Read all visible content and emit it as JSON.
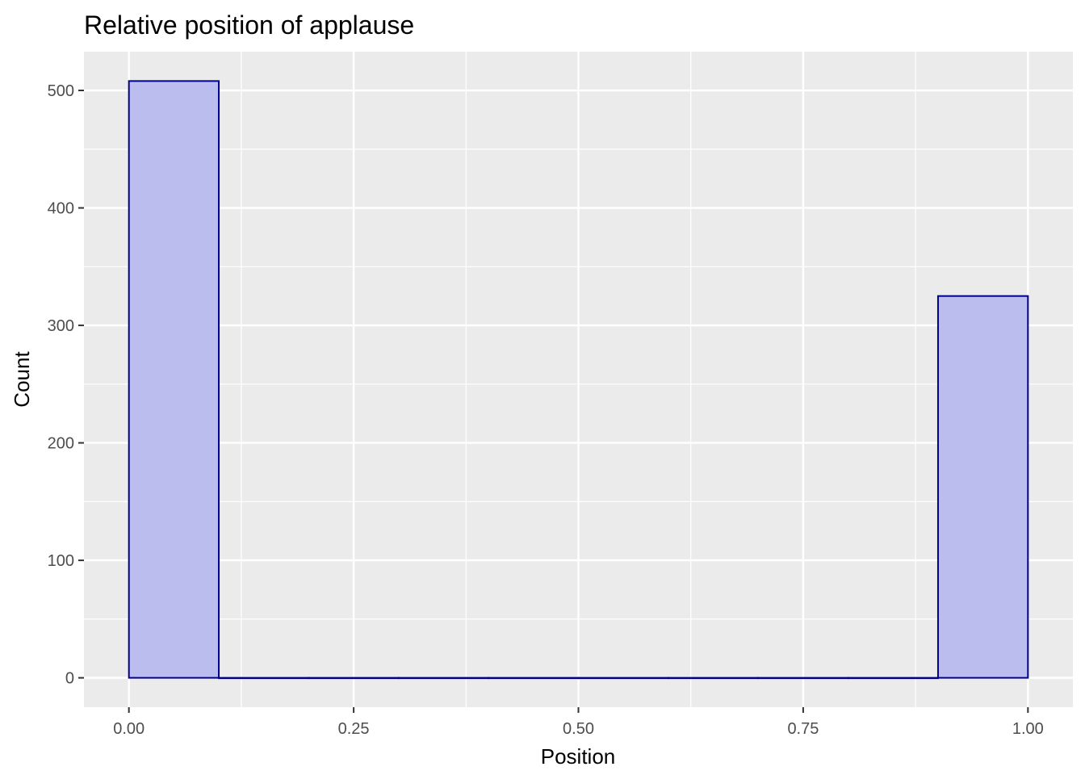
{
  "chart_data": {
    "type": "bar",
    "title": "Relative position of applause",
    "xlabel": "Position",
    "ylabel": "Count",
    "x_ticks": [
      "0.00",
      "0.25",
      "0.50",
      "0.75",
      "1.00"
    ],
    "y_ticks": [
      "0",
      "100",
      "200",
      "300",
      "400",
      "500"
    ],
    "xlim": [
      -0.05,
      1.05
    ],
    "ylim": [
      -25,
      533
    ],
    "bins": [
      {
        "start": 0.0,
        "end": 0.1,
        "count": 508
      },
      {
        "start": 0.1,
        "end": 0.2,
        "count": 0
      },
      {
        "start": 0.2,
        "end": 0.3,
        "count": 0
      },
      {
        "start": 0.3,
        "end": 0.4,
        "count": 0
      },
      {
        "start": 0.4,
        "end": 0.5,
        "count": 0
      },
      {
        "start": 0.5,
        "end": 0.6,
        "count": 0
      },
      {
        "start": 0.6,
        "end": 0.7,
        "count": 0
      },
      {
        "start": 0.7,
        "end": 0.8,
        "count": 0
      },
      {
        "start": 0.8,
        "end": 0.9,
        "count": 0
      },
      {
        "start": 0.9,
        "end": 1.0,
        "count": 325
      }
    ],
    "grid": true,
    "bar_fill": "#bbbdef",
    "bar_stroke": "#00008b",
    "panel_background": "#ebebeb",
    "grid_color": "#ffffff"
  }
}
